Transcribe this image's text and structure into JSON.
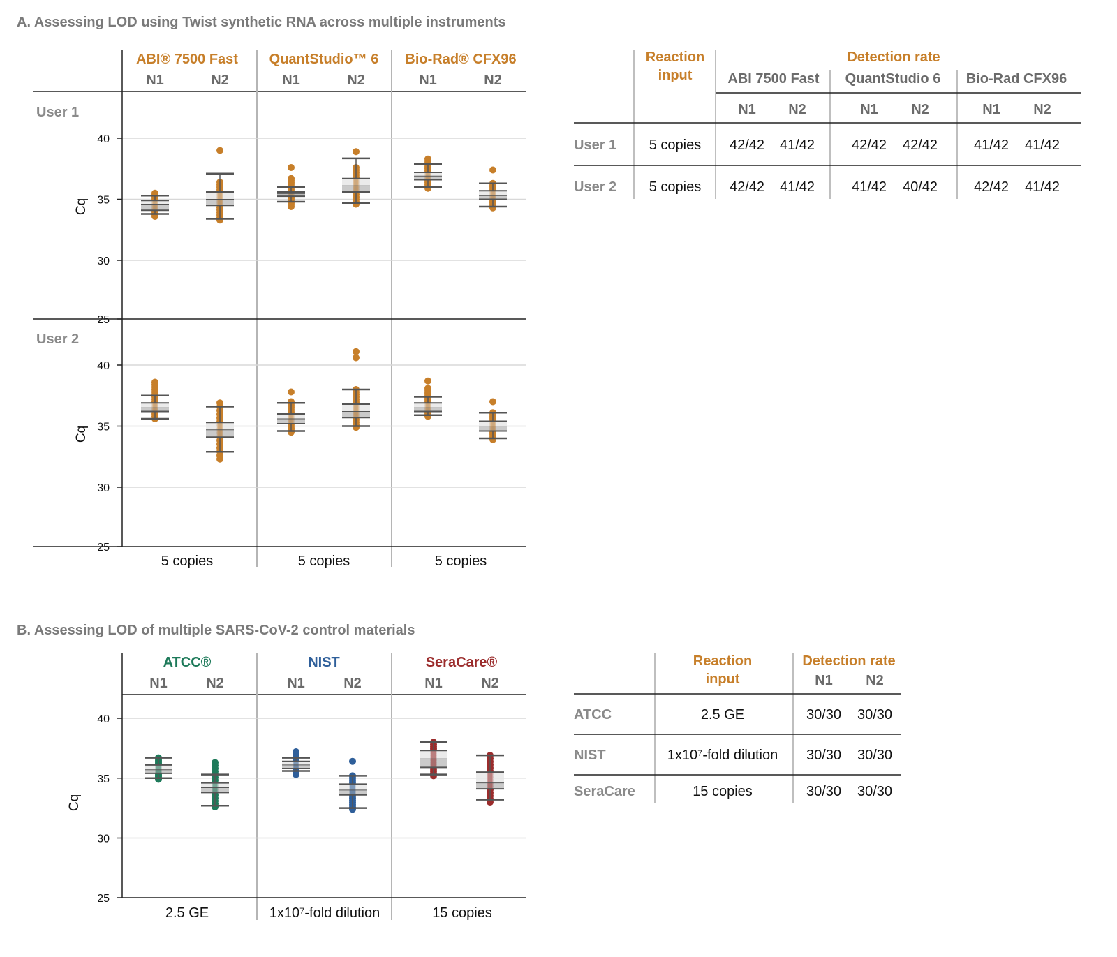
{
  "colors": {
    "instrument": "#c77f2a",
    "atcc": "#1e7a5a",
    "nist": "#2f5f9a",
    "seracare": "#9b2c2c",
    "header_gray": "#6b6b6b",
    "title_gray": "#7a7a7a"
  },
  "panel_a": {
    "title": "A. Assessing LOD using Twist synthetic RNA across multiple instruments",
    "instruments": [
      "ABI® 7500 Fast",
      "QuantStudio™ 6",
      "Bio-Rad® CFX96"
    ],
    "targets": [
      "N1",
      "N2"
    ],
    "users": [
      "User 1",
      "User 2"
    ],
    "ylabel": "Cq",
    "yticks": [
      "40",
      "35",
      "30",
      "25"
    ],
    "xlabels": [
      "5 copies",
      "5 copies",
      "5 copies"
    ],
    "table": {
      "reaction_input_header": [
        "Reaction",
        "input"
      ],
      "detection_rate_header": "Detection rate",
      "instruments": [
        "ABI 7500 Fast",
        "QuantStudio 6",
        "Bio-Rad CFX96"
      ],
      "targets": [
        "N1",
        "N2",
        "N1",
        "N2",
        "N1",
        "N2"
      ],
      "rows": [
        {
          "label": "User 1",
          "input": "5 copies",
          "rates": [
            "42/42",
            "41/42",
            "42/42",
            "42/42",
            "41/42",
            "41/42"
          ]
        },
        {
          "label": "User 2",
          "input": "5 copies",
          "rates": [
            "42/42",
            "41/42",
            "41/42",
            "40/42",
            "42/42",
            "41/42"
          ]
        }
      ]
    }
  },
  "panel_b": {
    "title": "B. Assessing LOD of multiple SARS-CoV-2 control materials",
    "materials": [
      "ATCC®",
      "NIST",
      "SeraCare®"
    ],
    "targets": [
      "N1",
      "N2"
    ],
    "ylabel": "Cq",
    "yticks": [
      "40",
      "35",
      "30",
      "25"
    ],
    "xlabels": [
      "2.5 GE",
      "1x10⁷-fold dilution",
      "15 copies"
    ],
    "table": {
      "reaction_input_header": [
        "Reaction",
        "input"
      ],
      "detection_rate_header": "Detection rate",
      "targets": [
        "N1",
        "N2"
      ],
      "rows": [
        {
          "label": "ATCC",
          "input": "2.5 GE",
          "rates": [
            "30/30",
            "30/30"
          ]
        },
        {
          "label": "NIST",
          "input": "1x10⁷-fold dilution",
          "rates": [
            "30/30",
            "30/30"
          ]
        },
        {
          "label": "SeraCare",
          "input": "15 copies",
          "rates": [
            "30/30",
            "30/30"
          ]
        }
      ]
    }
  },
  "chart_data": [
    {
      "type": "box",
      "panel": "A",
      "facet": "User 1",
      "ylabel": "Cq",
      "ylim": [
        25,
        43
      ],
      "yticks": [
        25,
        30,
        35,
        40
      ],
      "grid": true,
      "groups": [
        {
          "instrument": "ABI® 7500 Fast",
          "target": "N1",
          "whisker": [
            33.8,
            35.3
          ],
          "box": [
            34.1,
            34.6,
            34.9
          ],
          "points": [
            33.6,
            35.5
          ],
          "outliers": []
        },
        {
          "instrument": "ABI® 7500 Fast",
          "target": "N2",
          "whisker": [
            33.4,
            37.1
          ],
          "box": [
            34.5,
            35.0,
            35.6
          ],
          "points": [
            33.3,
            36.4
          ],
          "outliers": [
            39.0
          ]
        },
        {
          "instrument": "QuantStudio™ 6",
          "target": "N1",
          "whisker": [
            34.8,
            36.0
          ],
          "box": [
            35.25,
            35.45,
            35.6
          ],
          "points": [
            34.4,
            36.7
          ],
          "outliers": [
            37.6
          ]
        },
        {
          "instrument": "QuantStudio™ 6",
          "target": "N2",
          "whisker": [
            34.7,
            38.35
          ],
          "box": [
            35.6,
            36.1,
            36.7
          ],
          "points": [
            34.6,
            37.6
          ],
          "outliers": [
            38.9
          ]
        },
        {
          "instrument": "Bio-Rad® CFX96",
          "target": "N1",
          "whisker": [
            36.0,
            37.9
          ],
          "box": [
            36.6,
            36.9,
            37.2
          ],
          "points": [
            35.9,
            38.3
          ],
          "outliers": []
        },
        {
          "instrument": "Bio-Rad® CFX96",
          "target": "N2",
          "whisker": [
            34.4,
            36.3
          ],
          "box": [
            35.0,
            35.3,
            35.7
          ],
          "points": [
            34.3,
            36.3
          ],
          "outliers": [
            37.4
          ]
        }
      ]
    },
    {
      "type": "box",
      "panel": "A",
      "facet": "User 2",
      "ylabel": "Cq",
      "ylim": [
        25,
        43
      ],
      "yticks": [
        25,
        30,
        35,
        40
      ],
      "grid": true,
      "groups": [
        {
          "instrument": "ABI® 7500 Fast",
          "target": "N1",
          "whisker": [
            35.6,
            37.5
          ],
          "box": [
            36.2,
            36.5,
            36.9
          ],
          "points": [
            35.6,
            38.6
          ],
          "outliers": []
        },
        {
          "instrument": "ABI® 7500 Fast",
          "target": "N2",
          "whisker": [
            32.9,
            36.6
          ],
          "box": [
            34.1,
            34.7,
            35.3
          ],
          "points": [
            32.3,
            36.9
          ],
          "outliers": []
        },
        {
          "instrument": "QuantStudio™ 6",
          "target": "N1",
          "whisker": [
            34.6,
            36.9
          ],
          "box": [
            35.2,
            35.6,
            36.0
          ],
          "points": [
            34.5,
            37.0
          ],
          "outliers": [
            37.8
          ]
        },
        {
          "instrument": "QuantStudio™ 6",
          "target": "N2",
          "whisker": [
            35.0,
            38.0
          ],
          "box": [
            35.7,
            36.2,
            36.8
          ],
          "points": [
            34.9,
            38.0
          ],
          "outliers": [
            40.6,
            41.1
          ]
        },
        {
          "instrument": "Bio-Rad® CFX96",
          "target": "N1",
          "whisker": [
            35.9,
            37.4
          ],
          "box": [
            36.2,
            36.5,
            36.9
          ],
          "points": [
            35.8,
            38.1
          ],
          "outliers": [
            38.7
          ]
        },
        {
          "instrument": "Bio-Rad® CFX96",
          "target": "N2",
          "whisker": [
            34.0,
            36.1
          ],
          "box": [
            34.6,
            35.0,
            35.4
          ],
          "points": [
            33.9,
            36.1
          ],
          "outliers": [
            37.0
          ]
        }
      ]
    },
    {
      "type": "box",
      "panel": "B",
      "ylabel": "Cq",
      "ylim": [
        25,
        42
      ],
      "yticks": [
        25,
        30,
        35,
        40
      ],
      "grid": true,
      "groups": [
        {
          "material": "ATCC®",
          "target": "N1",
          "whisker": [
            35.0,
            36.7
          ],
          "box": [
            35.4,
            35.7,
            36.1
          ],
          "points": [
            34.9,
            36.7
          ],
          "outliers": []
        },
        {
          "material": "ATCC®",
          "target": "N2",
          "whisker": [
            32.7,
            35.3
          ],
          "box": [
            33.8,
            34.2,
            34.6
          ],
          "points": [
            32.6,
            36.3
          ],
          "outliers": []
        },
        {
          "material": "NIST",
          "target": "N1",
          "whisker": [
            35.6,
            36.7
          ],
          "box": [
            35.8,
            36.1,
            36.4
          ],
          "points": [
            35.3,
            37.2
          ],
          "outliers": []
        },
        {
          "material": "NIST",
          "target": "N2",
          "whisker": [
            32.5,
            35.2
          ],
          "box": [
            33.6,
            34.0,
            34.5
          ],
          "points": [
            32.4,
            35.2
          ],
          "outliers": [
            36.4
          ]
        },
        {
          "material": "SeraCare®",
          "target": "N1",
          "whisker": [
            35.3,
            38.0
          ],
          "box": [
            35.9,
            36.6,
            37.3
          ],
          "points": [
            35.2,
            38.0
          ],
          "outliers": []
        },
        {
          "material": "SeraCare®",
          "target": "N2",
          "whisker": [
            33.2,
            36.9
          ],
          "box": [
            34.1,
            34.6,
            35.5
          ],
          "points": [
            33.0,
            36.9
          ],
          "outliers": []
        }
      ]
    }
  ]
}
